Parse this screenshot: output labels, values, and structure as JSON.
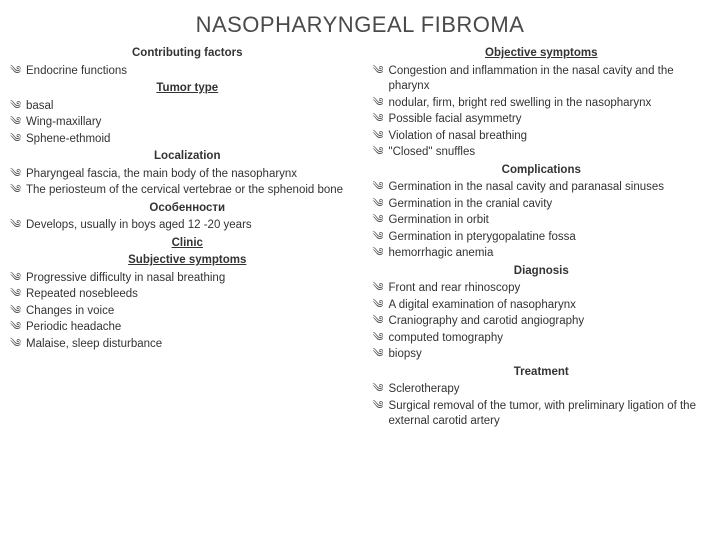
{
  "title": "NASOPHARYNGEAL FIBROMA",
  "bullet_glyph": "༄",
  "left": {
    "h_contrib": "Contributing factors",
    "contrib": [
      "Endocrine functions"
    ],
    "h_tumor": "Tumor type",
    "tumor": [
      "basal",
      "Wing-maxillary",
      "Sphene-ethmoid"
    ],
    "h_local": "Localization",
    "local": [
      "Pharyngeal fascia, the main body of the nasopharynx",
      "The periosteum of the cervical vertebrae or the sphenoid bone"
    ],
    "h_osob": "Особенности",
    "osob": [
      "Develops, usually in boys aged 12 -20 years"
    ],
    "h_clinic": "Clinic",
    "h_subj": "Subjective symptoms",
    "subj": [
      "Progressive difficulty in nasal breathing",
      "Repeated nosebleeds",
      "Changes in voice",
      "Periodic headache",
      "Malaise, sleep disturbance"
    ]
  },
  "right": {
    "h_obj": "Objective symptoms",
    "obj": [
      "Congestion and inflammation in the nasal cavity and the pharynx",
      "nodular, firm, bright red swelling in the nasopharynx",
      "Possible facial asymmetry",
      "Violation of nasal breathing",
      "\"Closed\" snuffles"
    ],
    "h_comp": "Complications",
    "comp": [
      "Germination in the nasal cavity and paranasal sinuses",
      "Germination in the cranial cavity",
      "Germination in orbit",
      "Germination in pterygopalatine fossa",
      "hemorrhagic anemia"
    ],
    "h_diag": "Diagnosis",
    "diag": [
      "Front and rear rhinoscopy",
      "A digital examination of nasopharynx",
      "Craniography and carotid angiography",
      "computed tomography",
      "biopsy"
    ],
    "h_treat": "Treatment",
    "treat": [
      "Sclerotherapy",
      "Surgical removal of the tumor, with preliminary ligation of the external carotid artery"
    ]
  }
}
